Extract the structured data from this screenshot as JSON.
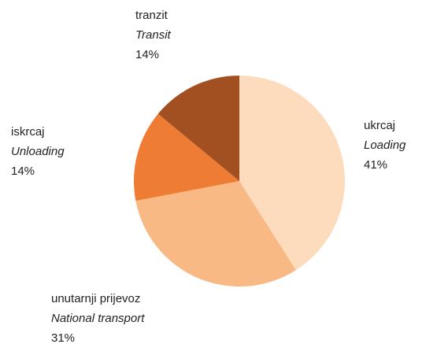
{
  "chart_data": {
    "type": "pie",
    "categories": [
      "ukrcaj",
      "unutarnji prijevoz",
      "iskrcaj",
      "tranzit"
    ],
    "categories_en": [
      "Loading",
      "National transport",
      "Unloading",
      "Transit"
    ],
    "values": [
      41,
      31,
      14,
      14
    ],
    "value_labels": [
      "41%",
      "31%",
      "14%",
      "14%"
    ],
    "colors": [
      "#fddcbd",
      "#f8b985",
      "#ef7c35",
      "#a24f22"
    ]
  }
}
